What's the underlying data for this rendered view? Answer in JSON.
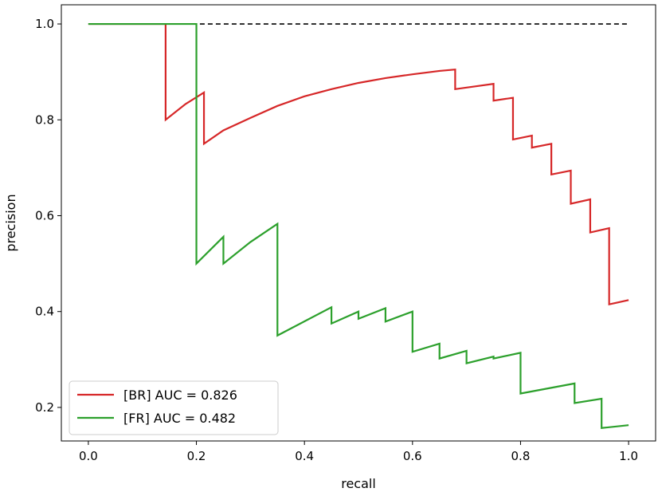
{
  "chart_data": {
    "type": "line",
    "title": "",
    "xlabel": "recall",
    "ylabel": "precision",
    "xlim": [
      -0.05,
      1.05
    ],
    "ylim": [
      0.13,
      1.04
    ],
    "xticks": [
      0.0,
      0.2,
      0.4,
      0.6,
      0.8,
      1.0
    ],
    "yticks": [
      0.2,
      0.4,
      0.6,
      0.8,
      1.0
    ],
    "xtick_labels": [
      "0.0",
      "0.2",
      "0.4",
      "0.6",
      "0.8",
      "1.0"
    ],
    "ytick_labels": [
      "0.2",
      "0.4",
      "0.6",
      "0.8",
      "1.0"
    ],
    "grid": false,
    "legend_position": "bottom-left",
    "reference_line": {
      "style": "dashed",
      "color": "#000000",
      "x": [
        0.0,
        1.0
      ],
      "y": [
        1.0,
        1.0
      ]
    },
    "series": [
      {
        "name": "[BR] AUC = 0.826",
        "color": "#d62728",
        "x": [
          0.0,
          0.143,
          0.143,
          0.18,
          0.214,
          0.214,
          0.25,
          0.3,
          0.35,
          0.4,
          0.45,
          0.5,
          0.55,
          0.6,
          0.65,
          0.679,
          0.679,
          0.75,
          0.75,
          0.786,
          0.786,
          0.821,
          0.821,
          0.857,
          0.857,
          0.893,
          0.893,
          0.929,
          0.929,
          0.964,
          0.964,
          1.0
        ],
        "y": [
          1.0,
          1.0,
          0.8,
          0.833,
          0.857,
          0.75,
          0.778,
          0.804,
          0.829,
          0.849,
          0.864,
          0.877,
          0.887,
          0.895,
          0.902,
          0.905,
          0.864,
          0.875,
          0.84,
          0.846,
          0.759,
          0.767,
          0.742,
          0.75,
          0.686,
          0.694,
          0.625,
          0.634,
          0.565,
          0.574,
          0.415,
          0.424
        ]
      },
      {
        "name": "[FR] AUC = 0.482",
        "color": "#2ca02c",
        "x": [
          0.0,
          0.2,
          0.2,
          0.25,
          0.25,
          0.3,
          0.35,
          0.35,
          0.45,
          0.45,
          0.5,
          0.5,
          0.55,
          0.55,
          0.6,
          0.6,
          0.65,
          0.65,
          0.7,
          0.7,
          0.75,
          0.75,
          0.8,
          0.8,
          0.9,
          0.9,
          0.95,
          0.95,
          1.0
        ],
        "y": [
          1.0,
          1.0,
          0.5,
          0.556,
          0.5,
          0.545,
          0.583,
          0.35,
          0.409,
          0.375,
          0.4,
          0.385,
          0.407,
          0.379,
          0.4,
          0.316,
          0.333,
          0.302,
          0.318,
          0.292,
          0.306,
          0.302,
          0.314,
          0.229,
          0.25,
          0.209,
          0.218,
          0.157,
          0.163
        ]
      }
    ]
  }
}
